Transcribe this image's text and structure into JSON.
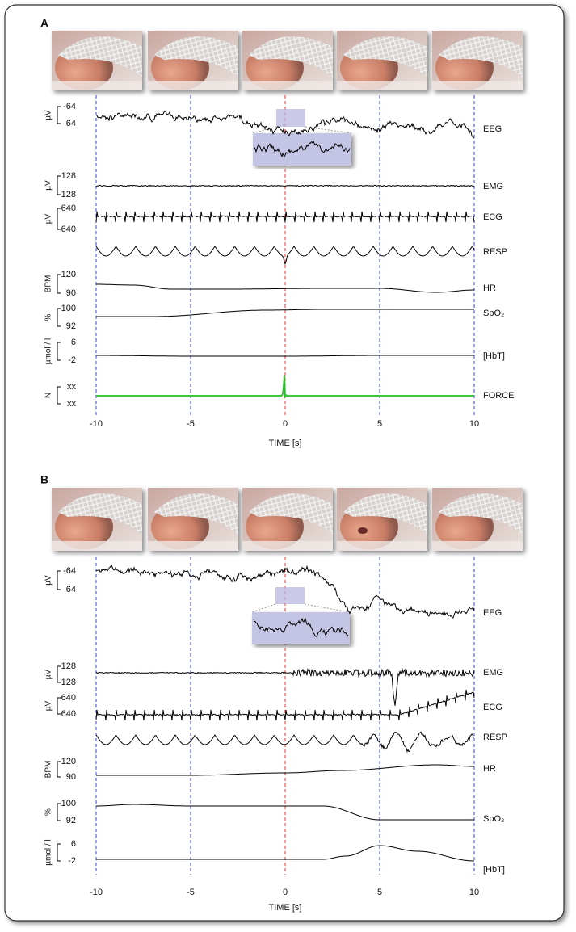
{
  "panels": [
    {
      "label": "A",
      "channels": [
        {
          "unit": "µV",
          "top": "-64",
          "bottom": "64",
          "name": "EEG"
        },
        {
          "unit": "µV",
          "top": "-128",
          "bottom": "128",
          "name": "EMG"
        },
        {
          "unit": "µV",
          "top": "-640",
          "bottom": "640",
          "name": "ECG"
        },
        {
          "name": "RESP"
        },
        {
          "unit": "BPM",
          "top": "120",
          "bottom": "90",
          "name": "HR"
        },
        {
          "unit": "%",
          "top": "100",
          "bottom": "92",
          "name": "SpO₂"
        },
        {
          "unit": "µmol / l",
          "top": "6",
          "bottom": "-2",
          "name": "[HbT]"
        },
        {
          "unit": "N",
          "top": "xx",
          "bottom": "xx",
          "name": "FORCE"
        }
      ],
      "x_ticks": [
        "-10",
        "-5",
        "0",
        "5",
        "10"
      ],
      "x_label": "TIME [s]"
    },
    {
      "label": "B",
      "channels": [
        {
          "unit": "µV",
          "top": "-64",
          "bottom": "64",
          "name": "EEG"
        },
        {
          "unit": "µV",
          "top": "-128",
          "bottom": "128",
          "name": "EMG"
        },
        {
          "unit": "µV",
          "top": "-640",
          "bottom": "640",
          "name": "ECG"
        },
        {
          "name": "RESP"
        },
        {
          "unit": "BPM",
          "top": "120",
          "bottom": "90",
          "name": "HR"
        },
        {
          "unit": "%",
          "top": "100",
          "bottom": "92",
          "name": "SpO₂"
        },
        {
          "unit": "µmol / l",
          "top": "6",
          "bottom": "-2",
          "name": "[HbT]"
        }
      ],
      "x_ticks": [
        "-10",
        "-5",
        "0",
        "5",
        "10"
      ],
      "x_label": "TIME [s]"
    }
  ]
}
